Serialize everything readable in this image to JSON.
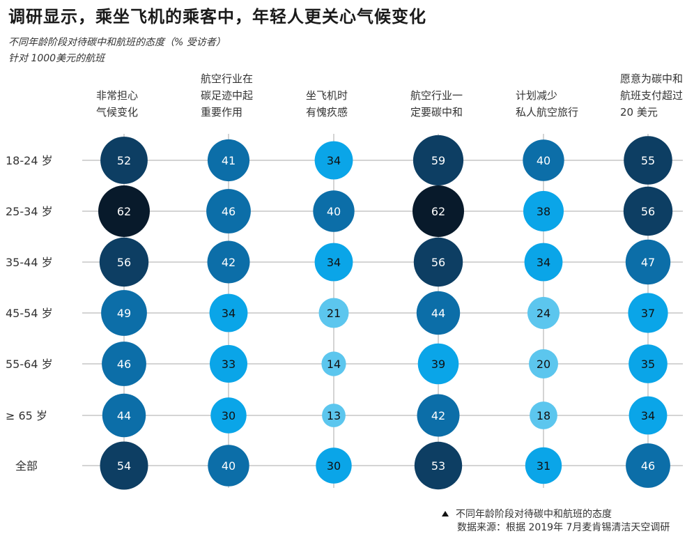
{
  "header": {
    "title": "调研显示，乘坐飞机的乘客中，年轻人更关心气候变化",
    "subtitle": "不同年龄阶段对待碳中和航班的态度（% 受访者）",
    "subtitle2": "针对 1000美元的航班"
  },
  "footer": {
    "legend_text": "不同年龄阶段对待碳中和航班的态度",
    "source": "数据来源：根据 2019年 7月麦肯锡清洁天空调研"
  },
  "chart_data": {
    "type": "bubble-matrix",
    "columns": [
      [
        "非常担心",
        "气候变化"
      ],
      [
        "航空行业在",
        "碳足迹中起",
        "重要作用"
      ],
      [
        "坐飞机时",
        "有愧疚感"
      ],
      [
        "航空行业一",
        "定要碳中和"
      ],
      [
        "计划减少",
        "私人航空旅行"
      ],
      [
        "愿意为碳中和",
        "航班支付超过",
        "20 美元"
      ]
    ],
    "rows": [
      "18-24 岁",
      "25-34 岁",
      "35-44 岁",
      "45-54 岁",
      "55-64 岁",
      "≥ 65 岁",
      "全部"
    ],
    "values": [
      [
        52,
        41,
        34,
        59,
        40,
        55
      ],
      [
        62,
        46,
        40,
        62,
        38,
        56
      ],
      [
        56,
        42,
        34,
        56,
        34,
        47
      ],
      [
        49,
        34,
        21,
        44,
        24,
        37
      ],
      [
        46,
        33,
        14,
        39,
        20,
        35
      ],
      [
        44,
        30,
        13,
        42,
        18,
        34
      ],
      [
        54,
        40,
        30,
        53,
        31,
        46
      ]
    ],
    "color_scale": [
      {
        "min": 60,
        "color": "#081a2b",
        "text": "#ffffff"
      },
      {
        "min": 50,
        "color": "#0d3e63",
        "text": "#ffffff"
      },
      {
        "min": 40,
        "color": "#0c6ea8",
        "text": "#ffffff"
      },
      {
        "min": 25,
        "color": "#0aa5e8",
        "text": "#111111"
      },
      {
        "min": 0,
        "color": "#5cc6ee",
        "text": "#111111"
      }
    ]
  }
}
